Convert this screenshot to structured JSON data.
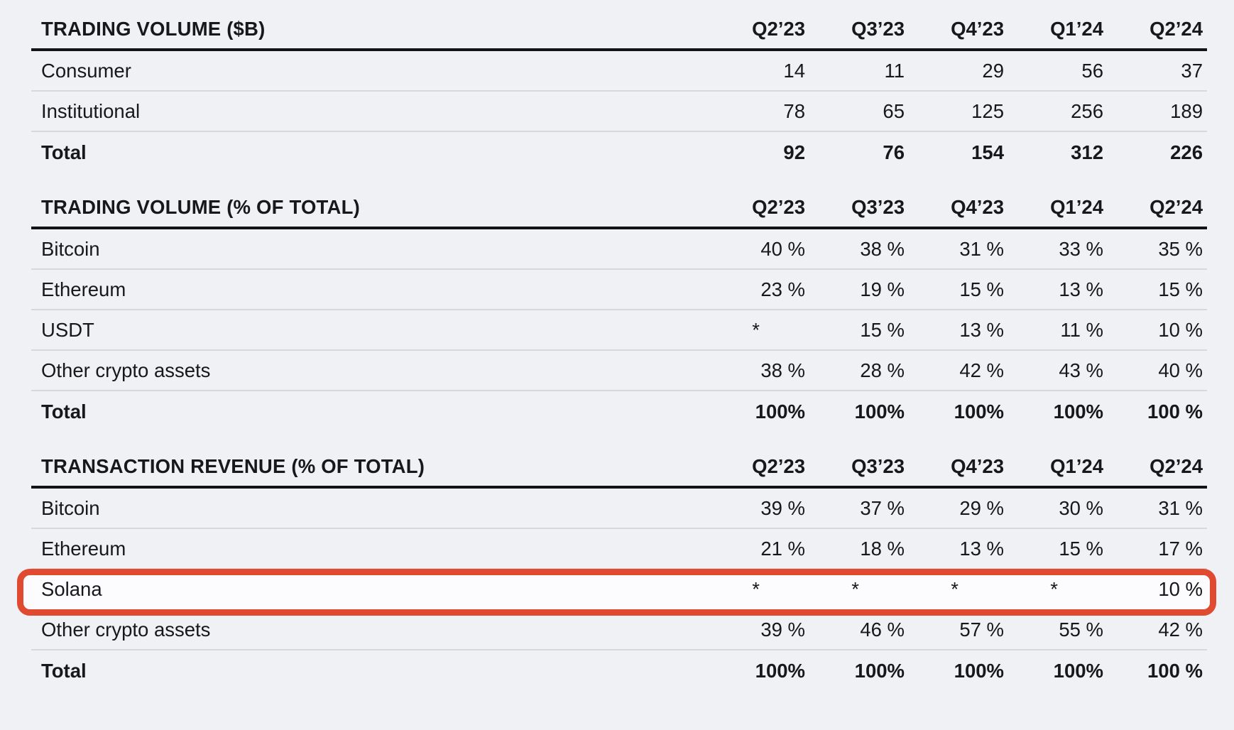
{
  "colors": {
    "background": "#f0f1f5",
    "text": "#17181b",
    "divider_gray": "#d6d8dc",
    "header_rule_black": "#121317",
    "highlight_red": "#df4a30",
    "highlight_fill": "#fcfcfe"
  },
  "annotation": {
    "type": "red-rounded-box",
    "highlighted_section": "TRANSACTION REVENUE (% OF TOTAL)",
    "highlighted_row": "Solana"
  },
  "chart_data": [
    {
      "type": "table",
      "title": "TRADING VOLUME ($B)",
      "columns": [
        "Q2’23",
        "Q3’23",
        "Q4’23",
        "Q1’24",
        "Q2’24"
      ],
      "rows": [
        {
          "label": "Consumer",
          "bold": false,
          "highlight": false,
          "values": [
            "14",
            "11",
            "29",
            "56",
            "37"
          ]
        },
        {
          "label": "Institutional",
          "bold": false,
          "highlight": false,
          "values": [
            "78",
            "65",
            "125",
            "256",
            "189"
          ]
        },
        {
          "label": "Total",
          "bold": true,
          "highlight": false,
          "values": [
            "92",
            "76",
            "154",
            "312",
            "226"
          ]
        }
      ]
    },
    {
      "type": "table",
      "title": "TRADING VOLUME (% OF TOTAL)",
      "columns": [
        "Q2’23",
        "Q3’23",
        "Q4’23",
        "Q1’24",
        "Q2’24"
      ],
      "rows": [
        {
          "label": "Bitcoin",
          "bold": false,
          "highlight": false,
          "values": [
            "40 %",
            "38 %",
            "31 %",
            "33 %",
            "35 %"
          ]
        },
        {
          "label": "Ethereum",
          "bold": false,
          "highlight": false,
          "values": [
            "23 %",
            "19 %",
            "15 %",
            "13 %",
            "15 %"
          ]
        },
        {
          "label": "USDT",
          "bold": false,
          "highlight": false,
          "values": [
            "*",
            "15 %",
            "13 %",
            "11 %",
            "10 %"
          ]
        },
        {
          "label": "Other crypto assets",
          "bold": false,
          "highlight": false,
          "values": [
            "38 %",
            "28 %",
            "42 %",
            "43 %",
            "40 %"
          ]
        },
        {
          "label": "Total",
          "bold": true,
          "highlight": false,
          "values": [
            "100%",
            "100%",
            "100%",
            "100%",
            "100 %"
          ]
        }
      ]
    },
    {
      "type": "table",
      "title": "TRANSACTION REVENUE (% OF TOTAL)",
      "columns": [
        "Q2’23",
        "Q3’23",
        "Q4’23",
        "Q1’24",
        "Q2’24"
      ],
      "rows": [
        {
          "label": "Bitcoin",
          "bold": false,
          "highlight": false,
          "values": [
            "39 %",
            "37 %",
            "29 %",
            "30 %",
            "31 %"
          ]
        },
        {
          "label": "Ethereum",
          "bold": false,
          "highlight": false,
          "values": [
            "21 %",
            "18 %",
            "13 %",
            "15 %",
            "17 %"
          ]
        },
        {
          "label": "Solana",
          "bold": false,
          "highlight": true,
          "values": [
            "*",
            "*",
            "*",
            "*",
            "10 %"
          ]
        },
        {
          "label": "Other crypto assets",
          "bold": false,
          "highlight": false,
          "values": [
            "39 %",
            "46 %",
            "57 %",
            "55 %",
            "42 %"
          ]
        },
        {
          "label": "Total",
          "bold": true,
          "highlight": false,
          "values": [
            "100%",
            "100%",
            "100%",
            "100%",
            "100 %"
          ]
        }
      ]
    }
  ]
}
